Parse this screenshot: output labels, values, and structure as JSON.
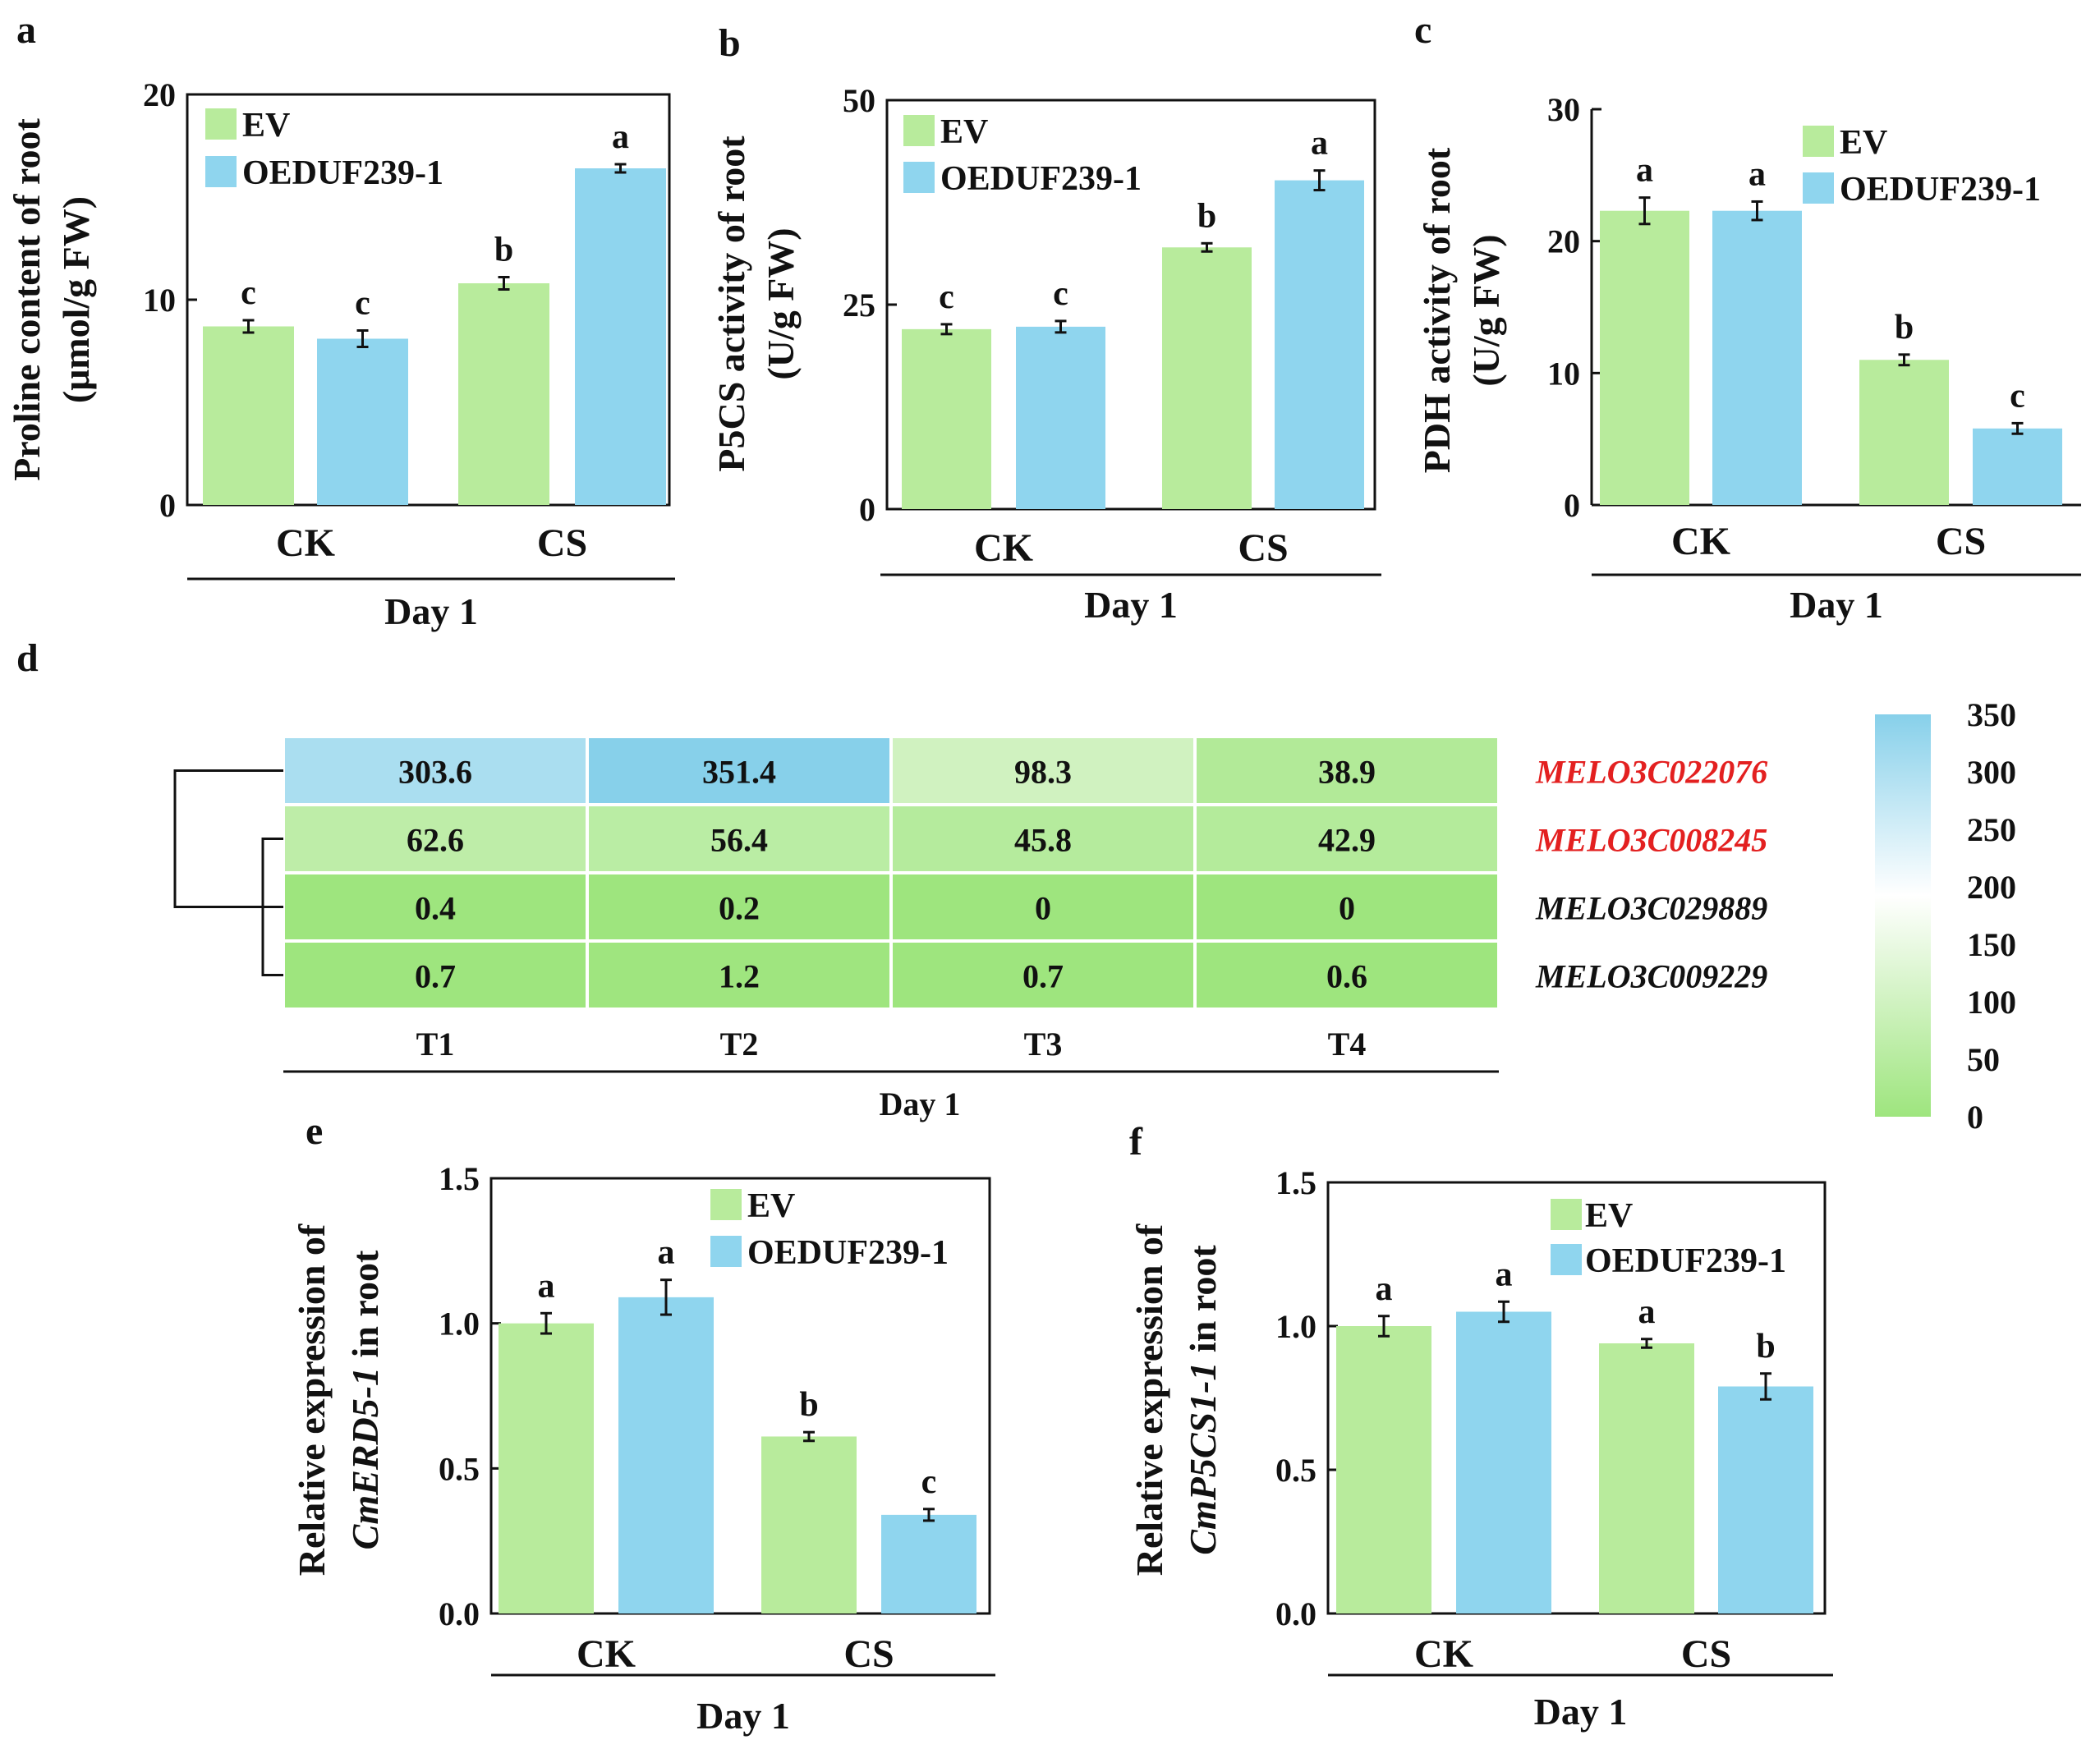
{
  "colors": {
    "ev": "#b8eb9c",
    "oe": "#8fd5ee",
    "gene_highlight": "#e32020",
    "gene_default": "#111111",
    "scale_low": "#9ee57e",
    "scale_mid": "#ffffff",
    "scale_high": "#87d0ea"
  },
  "chart_data": [
    {
      "panel": "a",
      "type": "bar",
      "ylabel": [
        "Proline content of root",
        "(μmol/g FW)"
      ],
      "ylabel_italic": [],
      "ylim": [
        0,
        20
      ],
      "yticks": [
        "0",
        "10",
        "20"
      ],
      "categories": [
        "CK",
        "CS"
      ],
      "xgroup": "Day 1",
      "legend": [
        "EV",
        "OEDUF239-1"
      ],
      "series": [
        {
          "name": "EV",
          "values": [
            8.7,
            10.8
          ],
          "errors": [
            0.3,
            0.3
          ],
          "letters": [
            "c",
            "b"
          ]
        },
        {
          "name": "OEDUF239-1",
          "values": [
            8.1,
            16.4
          ],
          "errors": [
            0.4,
            0.2
          ],
          "letters": [
            "c",
            "a"
          ]
        }
      ]
    },
    {
      "panel": "b",
      "type": "bar",
      "ylabel": [
        "P5CS activity of root",
        "(U/g FW)"
      ],
      "ylabel_italic": [],
      "ylim": [
        0,
        50
      ],
      "yticks": [
        "0",
        "25",
        "50"
      ],
      "categories": [
        "CK",
        "CS"
      ],
      "xgroup": "Day 1",
      "legend": [
        "EV",
        "OEDUF239-1"
      ],
      "series": [
        {
          "name": "EV",
          "values": [
            22.0,
            32.0
          ],
          "errors": [
            0.6,
            0.5
          ],
          "letters": [
            "c",
            "b"
          ]
        },
        {
          "name": "OEDUF239-1",
          "values": [
            22.3,
            40.2
          ],
          "errors": [
            0.7,
            1.2
          ],
          "letters": [
            "c",
            "a"
          ]
        }
      ]
    },
    {
      "panel": "c",
      "type": "bar",
      "ylabel": [
        "PDH activity of root",
        "(U/g FW)"
      ],
      "ylabel_italic": [],
      "ylim": [
        0,
        30
      ],
      "yticks": [
        "0",
        "10",
        "20",
        "30"
      ],
      "categories": [
        "CK",
        "CS"
      ],
      "xgroup": "Day 1",
      "legend": [
        "EV",
        "OEDUF239-1"
      ],
      "series": [
        {
          "name": "EV",
          "values": [
            22.3,
            11.0
          ],
          "errors": [
            1.0,
            0.4
          ],
          "letters": [
            "a",
            "b"
          ]
        },
        {
          "name": "OEDUF239-1",
          "values": [
            22.3,
            5.8
          ],
          "errors": [
            0.7,
            0.4
          ],
          "letters": [
            "a",
            "c"
          ]
        }
      ]
    },
    {
      "panel": "d",
      "type": "heatmap",
      "columns": [
        "T1",
        "T2",
        "T3",
        "T4"
      ],
      "rows": [
        "MELO3C022076",
        "MELO3C008245",
        "MELO3C029889",
        "MELO3C009229"
      ],
      "highlighted_rows": [
        "MELO3C022076",
        "MELO3C008245"
      ],
      "values": [
        [
          303.6,
          351.4,
          98.3,
          38.9
        ],
        [
          62.6,
          56.4,
          45.8,
          42.9
        ],
        [
          0.4,
          0.2,
          0,
          0
        ],
        [
          0.7,
          1.2,
          0.7,
          0.6
        ]
      ],
      "labels": [
        [
          "303.6",
          "351.4",
          "98.3",
          "38.9"
        ],
        [
          "62.6",
          "56.4",
          "45.8",
          "42.9"
        ],
        [
          "0.4",
          "0.2",
          "0",
          "0"
        ],
        [
          "0.7",
          "1.2",
          "0.7",
          "0.6"
        ]
      ],
      "xgroup": "Day 1",
      "scale_range": [
        0,
        350
      ],
      "scale_ticks": [
        "0",
        "50",
        "100",
        "150",
        "200",
        "250",
        "300",
        "350"
      ]
    },
    {
      "panel": "e",
      "type": "bar",
      "ylabel": [
        "Relative expression of",
        "in root"
      ],
      "ylabel_italic": [
        "CmERD5-1"
      ],
      "ylim": [
        0,
        1.5
      ],
      "yticks": [
        "0.0",
        "0.5",
        "1.0",
        "1.5"
      ],
      "categories": [
        "CK",
        "CS"
      ],
      "xgroup": "Day 1",
      "legend": [
        "EV",
        "OEDUF239-1"
      ],
      "series": [
        {
          "name": "EV",
          "values": [
            1.0,
            0.61
          ],
          "errors": [
            0.035,
            0.015
          ],
          "letters": [
            "a",
            "b"
          ]
        },
        {
          "name": "OEDUF239-1",
          "values": [
            1.09,
            0.34
          ],
          "errors": [
            0.06,
            0.02
          ],
          "letters": [
            "a",
            "c"
          ]
        }
      ]
    },
    {
      "panel": "f",
      "type": "bar",
      "ylabel": [
        "Relative expression of",
        " in root"
      ],
      "ylabel_italic": [
        "CmP5CS1-1"
      ],
      "ylim": [
        0,
        1.5
      ],
      "yticks": [
        "0.0",
        "0.5",
        "1.0",
        "1.5"
      ],
      "categories": [
        "CK",
        "CS"
      ],
      "xgroup": "Day 1",
      "legend": [
        "EV",
        "OEDUF239-1"
      ],
      "series": [
        {
          "name": "EV",
          "values": [
            1.0,
            0.94
          ],
          "errors": [
            0.035,
            0.015
          ],
          "letters": [
            "a",
            "a"
          ]
        },
        {
          "name": "OEDUF239-1",
          "values": [
            1.05,
            0.79
          ],
          "errors": [
            0.035,
            0.045
          ],
          "letters": [
            "a",
            "b"
          ]
        }
      ]
    }
  ]
}
